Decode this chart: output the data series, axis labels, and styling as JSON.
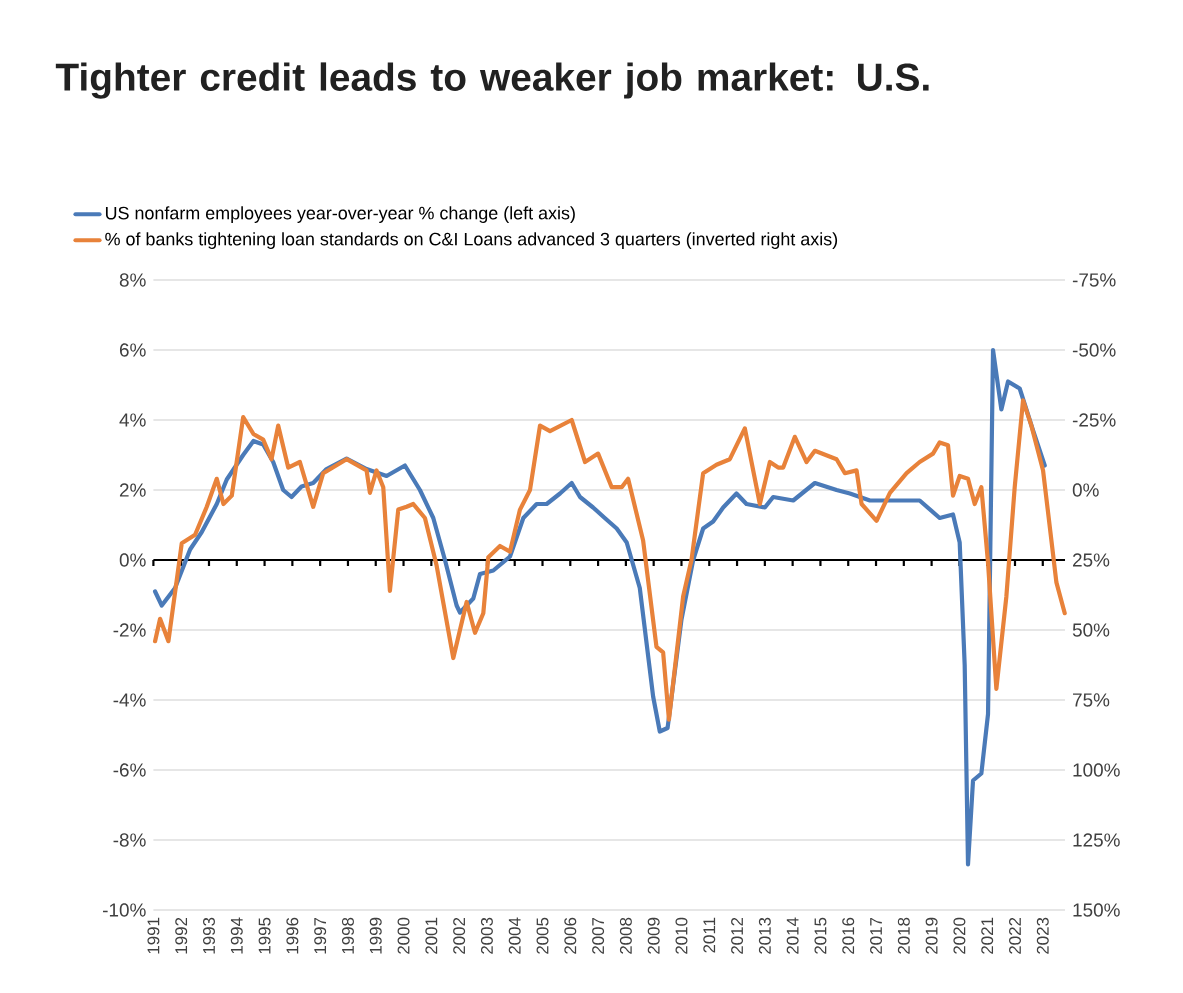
{
  "chart_data": {
    "type": "line",
    "title": "Tighter credit leads to weaker job market: U.S.",
    "xlim": [
      1991,
      2023.8
    ],
    "xticks": [
      1991,
      1992,
      1993,
      1994,
      1995,
      1996,
      1997,
      1998,
      1999,
      2000,
      2001,
      2002,
      2003,
      2004,
      2005,
      2006,
      2007,
      2008,
      2009,
      2010,
      2011,
      2012,
      2013,
      2014,
      2015,
      2016,
      2017,
      2018,
      2019,
      2020,
      2021,
      2022,
      2023
    ],
    "ylim": [
      -10,
      8
    ],
    "yticks": [
      {
        "value": -10,
        "label": "-10%"
      },
      {
        "value": -8,
        "label": "-8%"
      },
      {
        "value": -6,
        "label": "-6%"
      },
      {
        "value": -4,
        "label": "-4%"
      },
      {
        "value": -2,
        "label": "-2%"
      },
      {
        "value": 0,
        "label": "0%"
      },
      {
        "value": 2,
        "label": "2%"
      },
      {
        "value": 4,
        "label": "4%"
      },
      {
        "value": 6,
        "label": "6%"
      },
      {
        "value": 8,
        "label": "8%"
      }
    ],
    "y2lim": [
      150,
      -75
    ],
    "y2ticks": [
      {
        "value": 150,
        "label": "150%"
      },
      {
        "value": 125,
        "label": "125%"
      },
      {
        "value": 100,
        "label": "100%"
      },
      {
        "value": 75,
        "label": "75%"
      },
      {
        "value": 50,
        "label": "50%"
      },
      {
        "value": 25,
        "label": "25%"
      },
      {
        "value": 0,
        "label": "0%"
      },
      {
        "value": -25,
        "label": "-25%"
      },
      {
        "value": -50,
        "label": "-50%"
      },
      {
        "value": -75,
        "label": "-75%"
      }
    ],
    "grid": "y",
    "legend": "top left",
    "ref_lines": [
      {
        "axis": "y",
        "value": 0,
        "color": "#000000"
      }
    ],
    "series": [
      {
        "name": "US nonfarm employees year-over-year % change (left axis)",
        "color": "#4a7ab8",
        "axis": "y",
        "x": [
          1991.06,
          1991.3,
          1991.78,
          1992.32,
          1992.74,
          1993.28,
          1993.64,
          1994.23,
          1994.6,
          1994.95,
          1995.31,
          1995.67,
          1995.97,
          1996.33,
          1996.75,
          1997.23,
          1997.95,
          1998.67,
          1999.39,
          2000.05,
          2000.59,
          2001.07,
          2001.49,
          2001.91,
          2002.03,
          2002.51,
          2002.75,
          2003.23,
          2003.83,
          2004.31,
          2004.79,
          2005.15,
          2005.63,
          2006.05,
          2006.35,
          2006.82,
          2007.24,
          2007.67,
          2008.03,
          2008.5,
          2008.98,
          2009.22,
          2009.5,
          2010.0,
          2010.42,
          2010.78,
          2011.14,
          2011.5,
          2011.98,
          2012.34,
          2013.0,
          2013.3,
          2014.02,
          2014.8,
          2015.58,
          2016.06,
          2016.78,
          2017.38,
          2017.97,
          2018.57,
          2019.29,
          2019.77,
          2020.01,
          2020.19,
          2020.31,
          2020.49,
          2020.79,
          2021.03,
          2021.21,
          2021.51,
          2021.75,
          2022.17,
          2022.65,
          2023.07
        ],
        "values": [
          -0.9,
          -1.3,
          -0.8,
          0.3,
          0.8,
          1.6,
          2.3,
          3.0,
          3.4,
          3.3,
          2.8,
          2.0,
          1.8,
          2.1,
          2.2,
          2.6,
          2.9,
          2.6,
          2.4,
          2.7,
          2.0,
          1.2,
          0.0,
          -1.3,
          -1.5,
          -1.1,
          -0.4,
          -0.3,
          0.1,
          1.2,
          1.6,
          1.6,
          1.9,
          2.2,
          1.8,
          1.5,
          1.2,
          0.9,
          0.5,
          -0.8,
          -3.9,
          -4.9,
          -4.8,
          -1.7,
          0.0,
          0.9,
          1.1,
          1.5,
          1.9,
          1.6,
          1.5,
          1.8,
          1.7,
          2.2,
          2.0,
          1.9,
          1.7,
          1.7,
          1.7,
          1.7,
          1.2,
          1.3,
          0.5,
          -3.0,
          -8.7,
          -6.3,
          -6.1,
          -4.4,
          6.0,
          4.3,
          5.1,
          4.9,
          3.7,
          2.7
        ]
      },
      {
        "name": "% of banks tightening loan standards on C&I Loans advanced 3 quarters (inverted right axis)",
        "color": "#e8823a",
        "axis": "y2",
        "x": [
          1991.06,
          1991.24,
          1991.54,
          1992.02,
          1992.5,
          1992.92,
          1993.28,
          1993.52,
          1993.82,
          1994.23,
          1994.6,
          1994.95,
          1995.25,
          1995.49,
          1995.85,
          1996.27,
          1996.75,
          1997.11,
          1997.95,
          1998.67,
          1998.79,
          1999.03,
          1999.27,
          1999.51,
          1999.81,
          2000.11,
          2000.35,
          2000.77,
          2001.19,
          2001.79,
          2002.27,
          2002.57,
          2002.87,
          2003.05,
          2003.47,
          2003.83,
          2004.19,
          2004.55,
          2004.91,
          2005.27,
          2006.05,
          2006.53,
          2007.0,
          2007.49,
          2007.85,
          2008.08,
          2008.62,
          2009.1,
          2009.34,
          2009.55,
          2010.06,
          2010.36,
          2010.78,
          2011.26,
          2011.74,
          2012.28,
          2012.82,
          2013.18,
          2013.48,
          2013.66,
          2014.08,
          2014.5,
          2014.8,
          2015.58,
          2015.88,
          2016.3,
          2016.48,
          2017.02,
          2017.5,
          2018.1,
          2018.57,
          2019.05,
          2019.29,
          2019.59,
          2019.77,
          2020.01,
          2020.31,
          2020.55,
          2020.79,
          2021.03,
          2021.33,
          2021.69,
          2021.99,
          2022.29,
          2022.59,
          2023.01,
          2023.49,
          2023.79
        ],
        "values": [
          54,
          46,
          54,
          19,
          16,
          6,
          -4,
          5,
          2,
          -26,
          -20,
          -18,
          -11,
          -23,
          -8,
          -10,
          6,
          -6,
          -11,
          -7,
          1,
          -7,
          -1,
          36,
          7,
          6,
          5,
          10,
          27,
          60,
          40,
          51,
          44,
          24,
          20,
          22,
          7,
          0,
          -23,
          -21,
          -25,
          -10,
          -13,
          -1,
          -1,
          -4,
          18,
          56,
          58,
          82,
          38,
          25,
          -6,
          -9,
          -11,
          -22,
          5,
          -10,
          -8,
          -8,
          -19,
          -10,
          -14,
          -11,
          -6,
          -7,
          5,
          11,
          1,
          -6,
          -10,
          -13,
          -17,
          -16,
          2,
          -5,
          -4,
          5,
          -1,
          26,
          71,
          38,
          -1,
          -32,
          -23,
          -7,
          33,
          44
        ]
      }
    ]
  }
}
